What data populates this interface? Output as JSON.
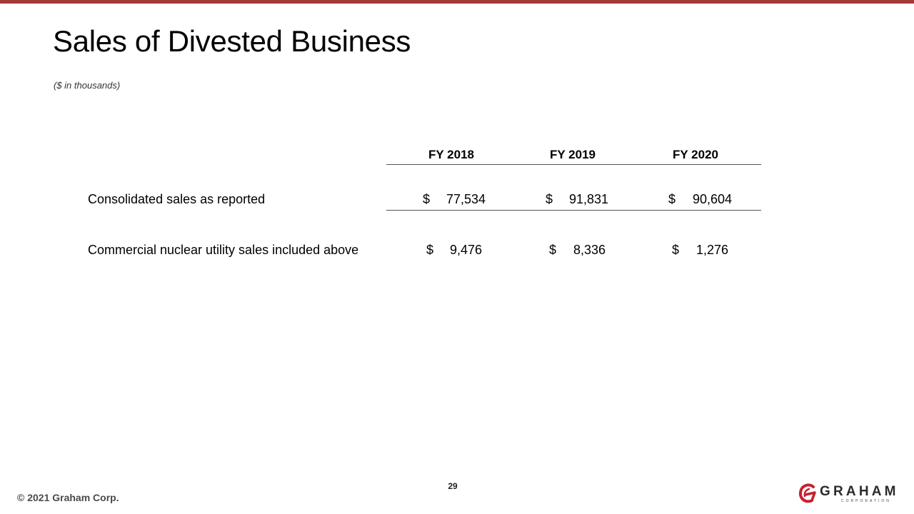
{
  "slide": {
    "title": "Sales of Divested Business",
    "subtitle": "($ in thousands)",
    "page_number": "29",
    "copyright": "© 2021 Graham Corp."
  },
  "logo": {
    "name": "GRAHAM",
    "tagline": "CORPORATION",
    "brand_color": "#c8202f"
  },
  "table": {
    "columns": [
      "FY 2018",
      "FY 2019",
      "FY 2020"
    ],
    "rows": [
      {
        "label": "Consolidated sales as reported",
        "cells": [
          {
            "currency": "$",
            "amount": "77,534"
          },
          {
            "currency": "$",
            "amount": "91,831"
          },
          {
            "currency": "$",
            "amount": "90,604"
          }
        ]
      },
      {
        "label": "Commercial nuclear utility sales included above",
        "cells": [
          {
            "currency": "$",
            "amount": "9,476"
          },
          {
            "currency": "$",
            "amount": "8,336"
          },
          {
            "currency": "$",
            "amount": "1,276"
          }
        ]
      }
    ]
  },
  "colors": {
    "accent_bar": "#a33a3a"
  }
}
